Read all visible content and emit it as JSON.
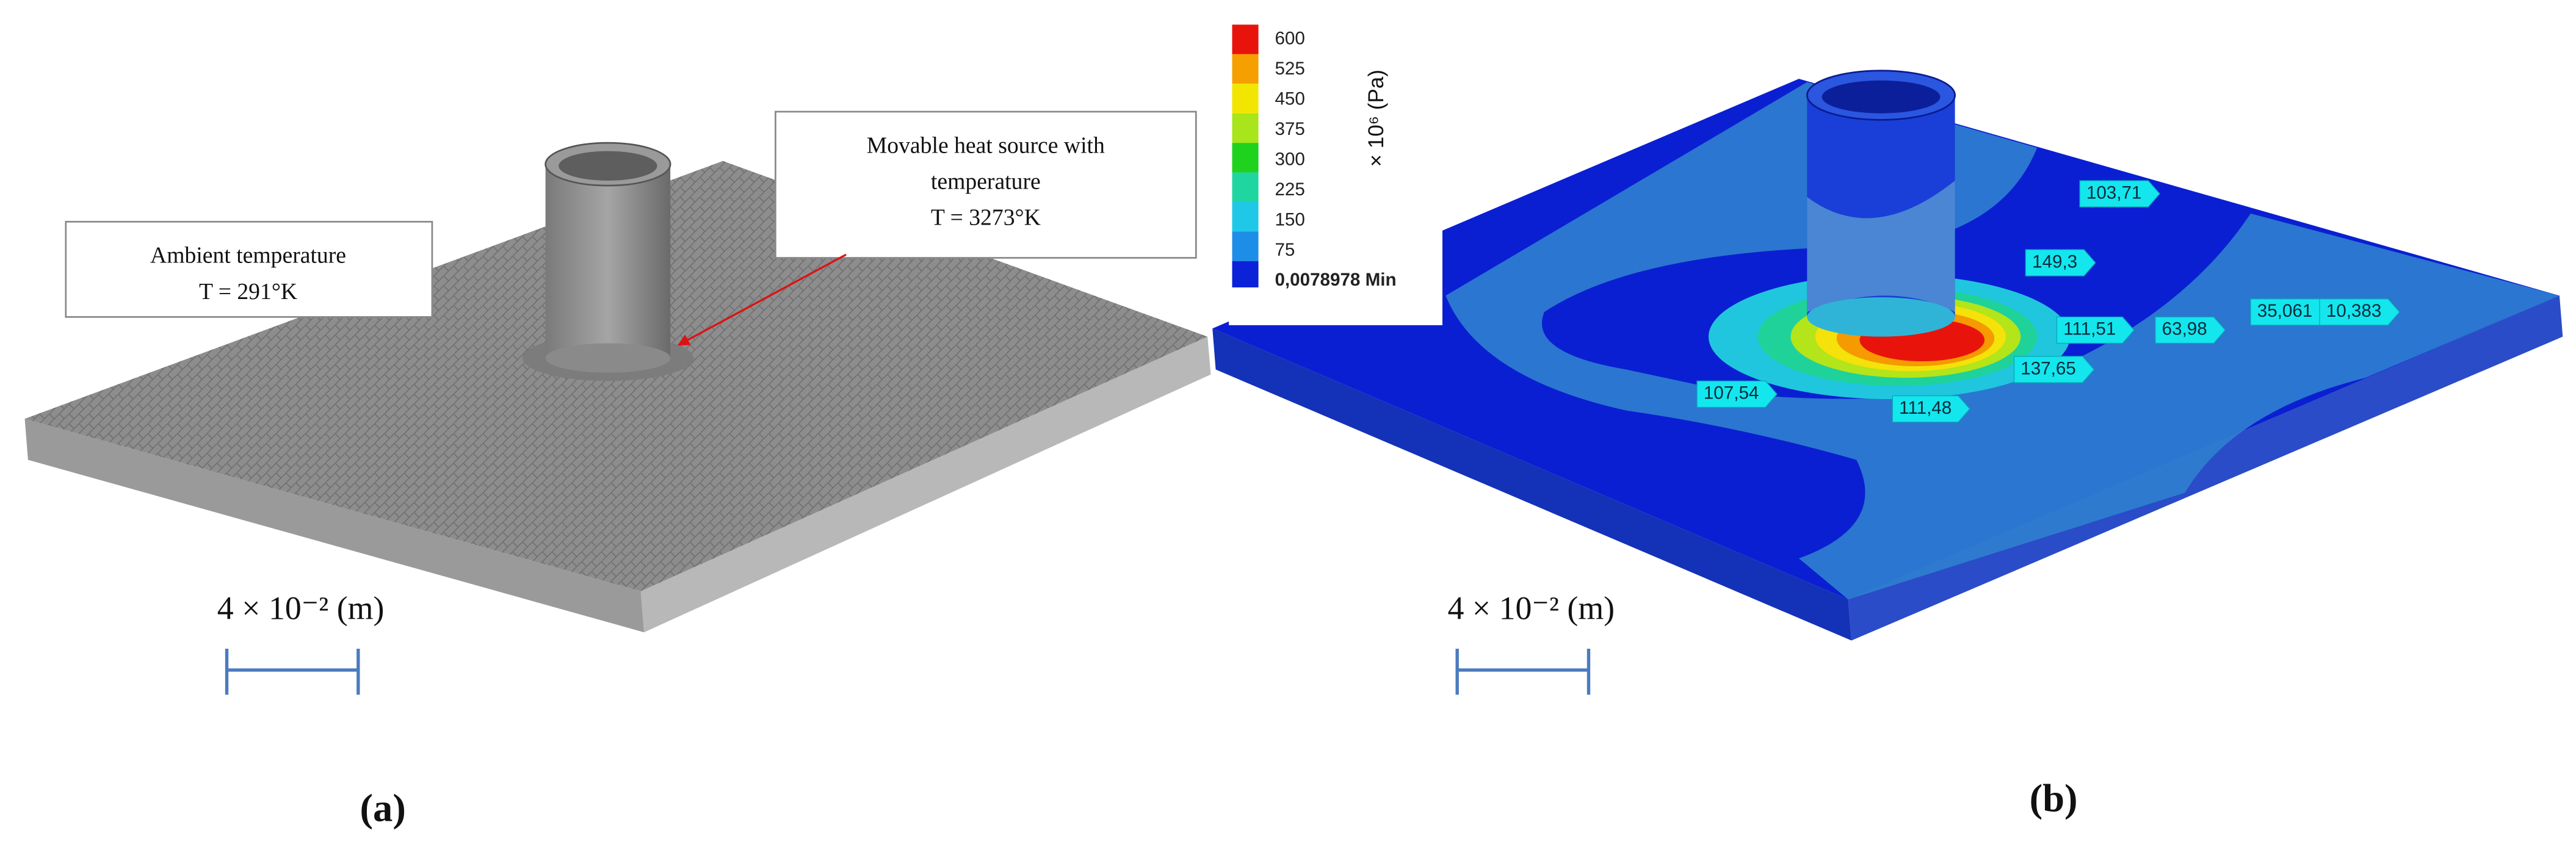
{
  "panel_a": {
    "callout_ambient": [
      "Ambient temperature",
      "T = 291°K"
    ],
    "callout_heat_source": [
      "Movable heat source with",
      "temperature",
      "T = 3273°K"
    ],
    "scale_label": "4 × 10⁻² (m)",
    "caption": "(a)"
  },
  "panel_b": {
    "legend": {
      "unit": "× 10⁶ (Pa)",
      "levels": [
        "600",
        "525",
        "450",
        "375",
        "300",
        "225",
        "150",
        "75"
      ],
      "min_label": "0,0078978 Min"
    },
    "probes": [
      "103,71",
      "149,3",
      "111,51",
      "63,98",
      "35,061",
      "10,383",
      "137,65",
      "107,54",
      "111,48"
    ],
    "scale_label": "4 × 10⁻² (m)",
    "caption": "(b)"
  }
}
